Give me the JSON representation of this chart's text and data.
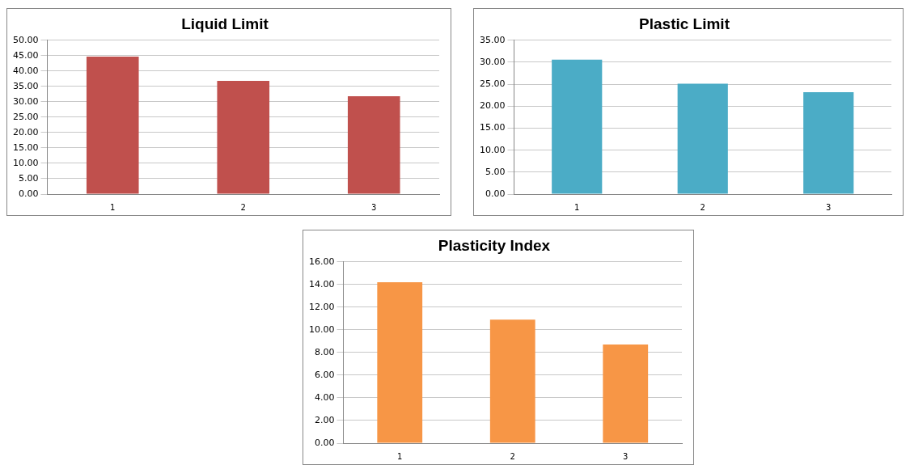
{
  "chart_data": [
    {
      "type": "bar",
      "title": "Liquid Limit",
      "categories": [
        "1",
        "2",
        "3"
      ],
      "values": [
        44.7,
        36.8,
        31.8
      ],
      "color": "#c0504d",
      "ylim": [
        0,
        50
      ],
      "yticks": [
        {
          "value": 0,
          "label": "0.00"
        },
        {
          "value": 5,
          "label": "5.00"
        },
        {
          "value": 10,
          "label": "10.00"
        },
        {
          "value": 15,
          "label": "15.00"
        },
        {
          "value": 20,
          "label": "20.00"
        },
        {
          "value": 25,
          "label": "25.00"
        },
        {
          "value": 30,
          "label": "30.00"
        },
        {
          "value": 35,
          "label": "35.00"
        },
        {
          "value": 40,
          "label": "40.00"
        },
        {
          "value": 45,
          "label": "45.00"
        },
        {
          "value": 50,
          "label": "50.00"
        }
      ],
      "grid": "y"
    },
    {
      "type": "bar",
      "title": "Plastic Limit",
      "categories": [
        "1",
        "2",
        "3"
      ],
      "values": [
        30.6,
        25.1,
        23.2
      ],
      "color": "#4bacc6",
      "ylim": [
        0,
        35
      ],
      "yticks": [
        {
          "value": 0,
          "label": "0.00"
        },
        {
          "value": 5,
          "label": "5.00"
        },
        {
          "value": 10,
          "label": "10.00"
        },
        {
          "value": 15,
          "label": "15.00"
        },
        {
          "value": 20,
          "label": "20.00"
        },
        {
          "value": 25,
          "label": "25.00"
        },
        {
          "value": 30,
          "label": "30.00"
        },
        {
          "value": 35,
          "label": "35.00"
        }
      ],
      "grid": "y"
    },
    {
      "type": "bar",
      "title": "Plasticity Index",
      "categories": [
        "1",
        "2",
        "3"
      ],
      "values": [
        14.2,
        10.9,
        8.7
      ],
      "color": "#f79646",
      "ylim": [
        0,
        16
      ],
      "yticks": [
        {
          "value": 0,
          "label": "0.00"
        },
        {
          "value": 2,
          "label": "2.00"
        },
        {
          "value": 4,
          "label": "4.00"
        },
        {
          "value": 6,
          "label": "6.00"
        },
        {
          "value": 8,
          "label": "8.00"
        },
        {
          "value": 10,
          "label": "10.00"
        },
        {
          "value": 12,
          "label": "12.00"
        },
        {
          "value": 14,
          "label": "14.00"
        },
        {
          "value": 16,
          "label": "16.00"
        }
      ],
      "grid": "y"
    }
  ]
}
